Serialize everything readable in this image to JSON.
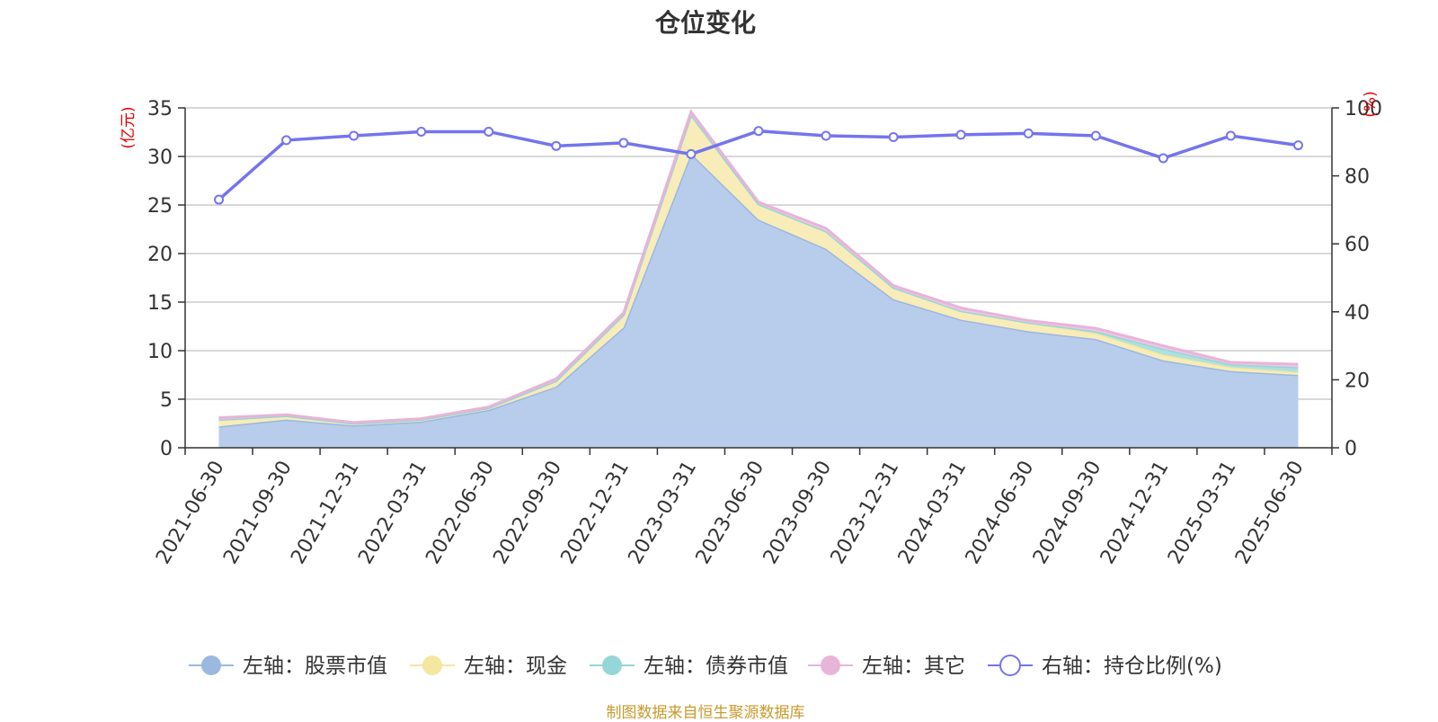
{
  "title": "仓位变化",
  "source": "制图数据来自恒生聚源数据库",
  "chart_data": {
    "type": "area",
    "x": [
      "2021-06-30",
      "2021-09-30",
      "2021-12-31",
      "2022-03-31",
      "2022-06-30",
      "2022-09-30",
      "2022-12-31",
      "2023-03-31",
      "2023-06-30",
      "2023-09-30",
      "2023-12-31",
      "2024-03-31",
      "2024-06-30",
      "2024-09-30",
      "2024-12-31",
      "2025-03-31",
      "2025-06-30"
    ],
    "left_axis": {
      "unit": "(亿元)",
      "ylim": [
        0,
        35
      ],
      "ticks": [
        0,
        5,
        10,
        15,
        20,
        25,
        30,
        35
      ]
    },
    "right_axis": {
      "unit": "(%)",
      "ylim": [
        0,
        100
      ],
      "ticks": [
        0,
        20,
        40,
        60,
        80,
        100
      ]
    },
    "stacked": true,
    "series": [
      {
        "name": "左轴：股票市值",
        "axis": "left",
        "color": "#9ab8e0",
        "fill": "#b8cdeb",
        "values": [
          2.2,
          2.9,
          2.3,
          2.7,
          3.9,
          6.3,
          12.4,
          30.3,
          23.5,
          20.5,
          15.3,
          13.2,
          12.0,
          11.2,
          9.0,
          7.9,
          7.5
        ]
      },
      {
        "name": "左轴：现金",
        "axis": "left",
        "color": "#f5e6a0",
        "fill": "#f8ecb8",
        "values": [
          0.7,
          0.4,
          0.2,
          0.2,
          0.2,
          0.6,
          1.3,
          4.0,
          1.6,
          1.8,
          1.2,
          0.9,
          0.9,
          0.6,
          0.6,
          0.4,
          0.3
        ]
      },
      {
        "name": "左轴：债券市值",
        "axis": "left",
        "color": "#95d6d6",
        "fill": "#aee0e0",
        "values": [
          0,
          0,
          0,
          0,
          0,
          0,
          0,
          0,
          0,
          0,
          0,
          0,
          0,
          0.2,
          0.6,
          0.3,
          0.5
        ]
      },
      {
        "name": "左轴：其它",
        "axis": "left",
        "color": "#e8b4d8",
        "fill": "#f0c8e4",
        "values": [
          0.2,
          0.1,
          0.1,
          0.1,
          0.1,
          0.2,
          0.2,
          0.3,
          0.2,
          0.3,
          0.2,
          0.3,
          0.2,
          0.3,
          0.3,
          0.2,
          0.3
        ]
      },
      {
        "name": "右轴：持仓比例(%)",
        "axis": "right",
        "color": "#7474ee",
        "values": [
          73.0,
          90.5,
          91.8,
          93.0,
          93.0,
          88.8,
          89.7,
          86.4,
          93.2,
          91.8,
          91.4,
          92.1,
          92.5,
          91.8,
          85.2,
          91.8,
          89.0
        ]
      }
    ],
    "grid": true,
    "legend_position": "bottom"
  }
}
